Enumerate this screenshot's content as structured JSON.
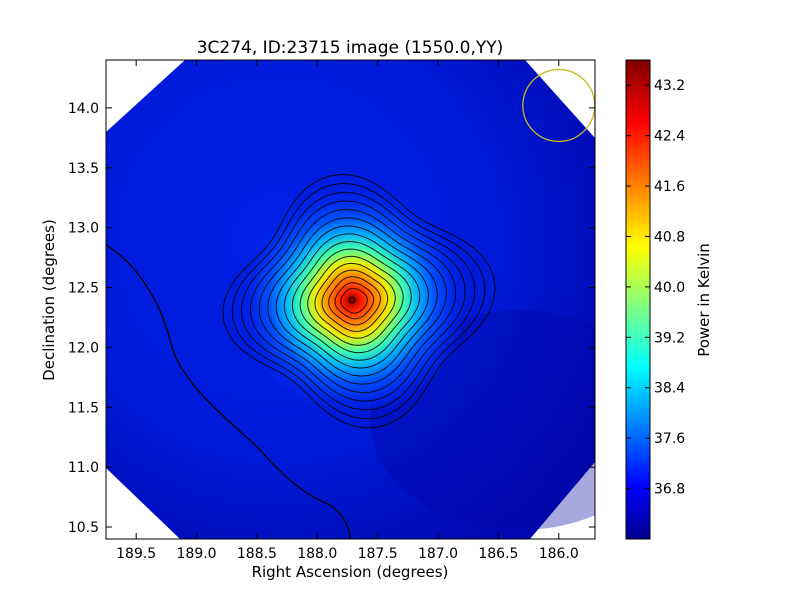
{
  "chart_data": {
    "type": "heatmap",
    "title": "3C274, ID:23715 image (1550.0,YY)",
    "xlabel": "Right Ascension (degrees)",
    "ylabel": "Declination (degrees)",
    "xlim": [
      189.75,
      185.7
    ],
    "ylim": [
      10.4,
      14.4
    ],
    "x_inverted": true,
    "xticks": [
      189.5,
      189.0,
      188.5,
      188.0,
      187.5,
      187.0,
      186.5,
      186.0
    ],
    "xtick_labels": [
      "189.5",
      "189.0",
      "188.5",
      "188.0",
      "187.5",
      "187.0",
      "186.5",
      "186.0"
    ],
    "yticks": [
      10.5,
      11.0,
      11.5,
      12.0,
      12.5,
      13.0,
      13.5,
      14.0
    ],
    "ytick_labels": [
      "10.5",
      "11.0",
      "11.5",
      "12.0",
      "12.5",
      "13.0",
      "13.5",
      "14.0"
    ],
    "colormap": "jet",
    "colorbar": {
      "label": "Power in Kelvin",
      "range": [
        36.0,
        43.6
      ],
      "ticks": [
        36.8,
        37.6,
        38.4,
        39.2,
        40.0,
        40.8,
        41.6,
        42.4,
        43.2
      ],
      "tick_labels": [
        "36.8",
        "37.6",
        "38.4",
        "39.2",
        "40.0",
        "40.8",
        "41.6",
        "42.4",
        "43.2"
      ]
    },
    "source": {
      "ra": 187.7,
      "dec": 12.39,
      "peak_kelvin": 43.6
    },
    "background_kelvin": 36.6,
    "contour_count": 16,
    "beam_marker": {
      "ra": 186.0,
      "dec": 14.02,
      "radius_deg": 0.3,
      "color": "#c8b820"
    },
    "grid": false
  }
}
